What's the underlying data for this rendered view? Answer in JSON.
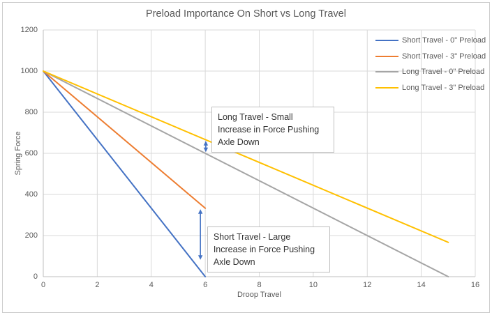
{
  "chart_data": {
    "type": "line",
    "title": "Preload Importance On Short vs Long Travel",
    "xlabel": "Droop Travel",
    "ylabel": "Spring Force",
    "xlim": [
      0,
      16
    ],
    "ylim": [
      0,
      1200
    ],
    "xticks": [
      0,
      2,
      4,
      6,
      8,
      10,
      12,
      14,
      16
    ],
    "yticks": [
      0,
      200,
      400,
      600,
      800,
      1000,
      1200
    ],
    "grid": true,
    "legend_position": "top-right",
    "series": [
      {
        "name": "Short Travel - 0\" Preload",
        "color": "#4472C4",
        "points": [
          [
            0,
            1000
          ],
          [
            6,
            0
          ]
        ]
      },
      {
        "name": "Short Travel - 3\" Preload",
        "color": "#ED7D31",
        "points": [
          [
            0,
            1000
          ],
          [
            6,
            333
          ]
        ]
      },
      {
        "name": "Long Travel - 0\" Preload",
        "color": "#A5A5A5",
        "points": [
          [
            0,
            1000
          ],
          [
            15,
            0
          ]
        ]
      },
      {
        "name": "Long Travel - 3\" Preload",
        "color": "#FFC000",
        "points": [
          [
            0,
            1000
          ],
          [
            15,
            167
          ]
        ]
      }
    ],
    "annotations": [
      {
        "text": "Long Travel - Small Increase in Force Pushing Axle Down",
        "x": 6.23,
        "y": 827
      },
      {
        "text": "Short Travel - Large Increase in Force Pushing Axle Down",
        "x": 6.07,
        "y": 244
      }
    ],
    "arrows": [
      {
        "x": 6.02,
        "y_from": 660,
        "y_to": 606,
        "color": "#4472C4"
      },
      {
        "x": 5.82,
        "y_from": 328,
        "y_to": 82,
        "color": "#4472C4"
      }
    ],
    "style_colors": {
      "grid": "#D9D9D9",
      "axis": "#BFBFBF",
      "text": "#595959"
    }
  }
}
